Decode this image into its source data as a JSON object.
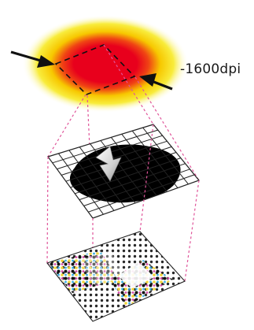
{
  "annotation": {
    "dpi_label": "-1600dpi"
  },
  "colors": {
    "spot_core": "#e8001c",
    "spot_halo": "#f5e800",
    "projection_lines": "#e0559a",
    "grid_lines": "#222222",
    "blob": "#000000"
  },
  "icons": {
    "left_pointer": "arrow-right-icon",
    "right_pointer": "arrow-left-icon",
    "center_arrow": "arrow-down-icon"
  }
}
